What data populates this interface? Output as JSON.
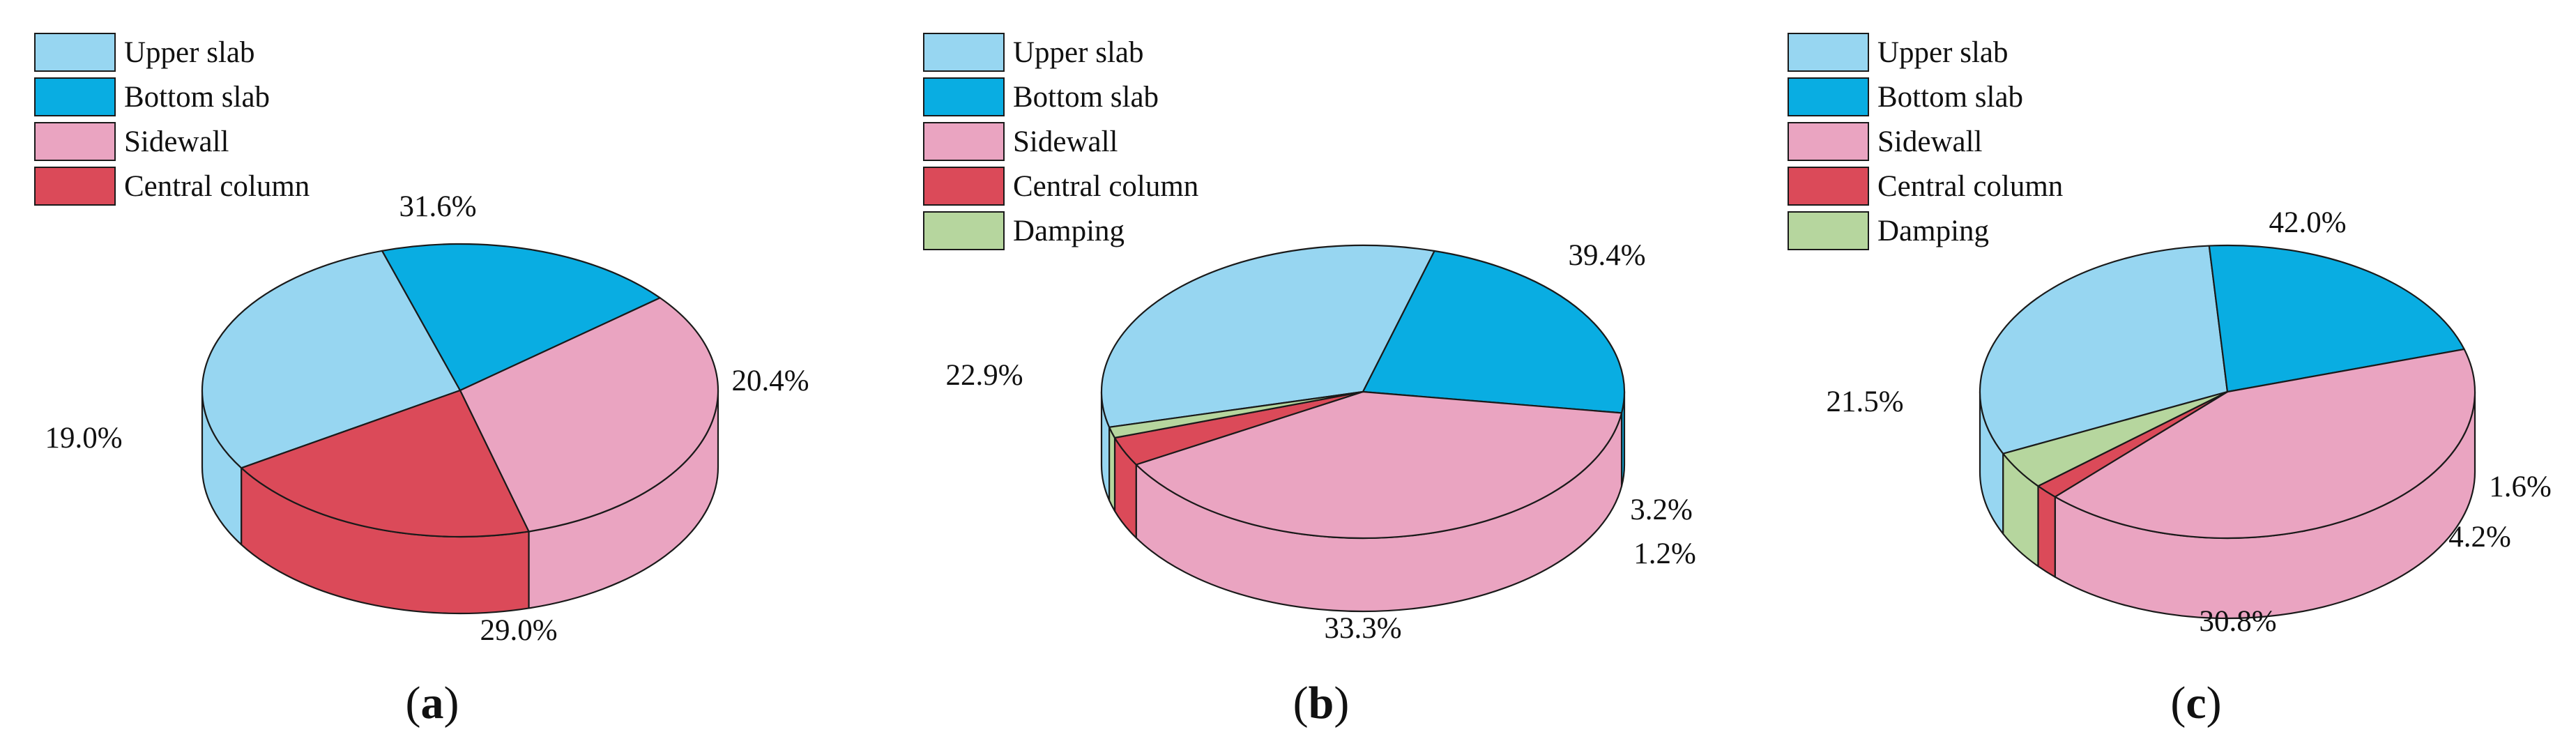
{
  "colors": {
    "upper_slab": "#97d6f1",
    "bottom_slab": "#09ade2",
    "sidewall": "#eaa4c1",
    "central_column": "#db4a59",
    "damping": "#b6d69e",
    "outline": "#1a1a1a"
  },
  "chart_data": [
    {
      "type": "pie",
      "panel_label": "a",
      "legend": [
        "Upper slab",
        "Bottom slab",
        "Sidewall",
        "Central column"
      ],
      "slices": [
        {
          "name": "Upper slab",
          "value": 29.0,
          "label": "29.0%"
        },
        {
          "name": "Bottom slab",
          "value": 19.0,
          "label": "19.0%"
        },
        {
          "name": "Sidewall",
          "value": 31.6,
          "label": "31.6%"
        },
        {
          "name": "Central column",
          "value": 20.4,
          "label": "20.4%"
        }
      ]
    },
    {
      "type": "pie",
      "panel_label": "b",
      "legend": [
        "Upper slab",
        "Bottom slab",
        "Sidewall",
        "Central column",
        "Damping"
      ],
      "slices": [
        {
          "name": "Upper slab",
          "value": 33.3,
          "label": "33.3%"
        },
        {
          "name": "Bottom slab",
          "value": 22.9,
          "label": "22.9%"
        },
        {
          "name": "Sidewall",
          "value": 39.4,
          "label": "39.4%"
        },
        {
          "name": "Central column",
          "value": 3.2,
          "label": "3.2%"
        },
        {
          "name": "Damping",
          "value": 1.2,
          "label": "1.2%"
        }
      ]
    },
    {
      "type": "pie",
      "panel_label": "c",
      "legend": [
        "Upper slab",
        "Bottom slab",
        "Sidewall",
        "Central column",
        "Damping"
      ],
      "slices": [
        {
          "name": "Upper slab",
          "value": 30.8,
          "label": "30.8%"
        },
        {
          "name": "Bottom slab",
          "value": 21.5,
          "label": "21.5%"
        },
        {
          "name": "Sidewall",
          "value": 42.0,
          "label": "42.0%"
        },
        {
          "name": "Central column",
          "value": 1.6,
          "label": "1.6%"
        },
        {
          "name": "Damping",
          "value": 4.2,
          "label": "4.2%"
        }
      ]
    }
  ]
}
